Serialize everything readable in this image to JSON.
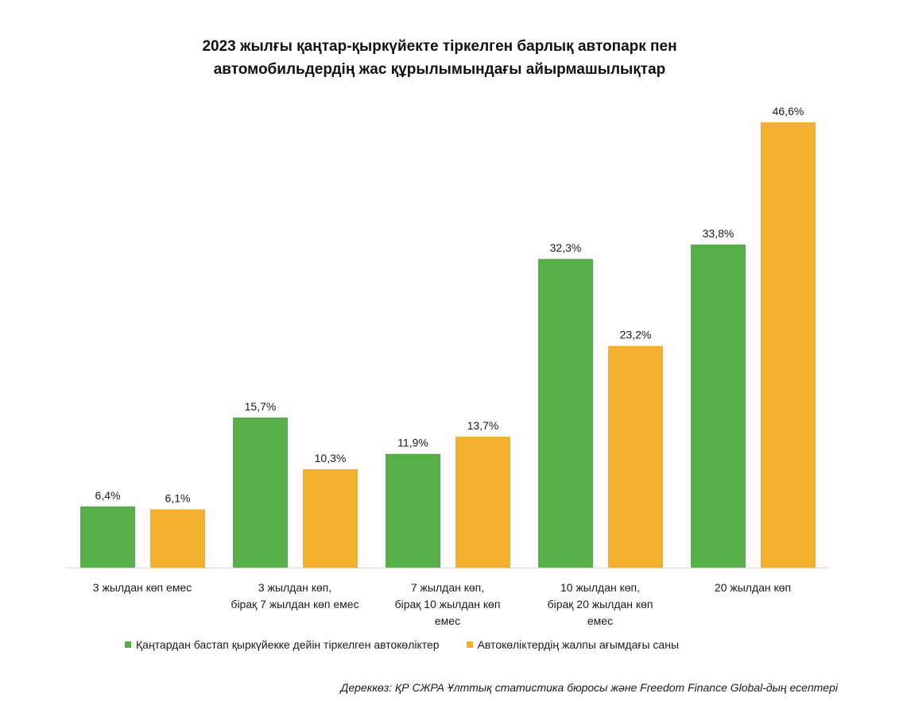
{
  "colors": {
    "series_1": "#56AE46",
    "series_2": "#F5AE2D",
    "axis": "#d9d9d9"
  },
  "chart_data": {
    "type": "bar",
    "title_lines": [
      "2023 жылғы қаңтар-қыркүйекте тіркелген барлық автопарк пен",
      "автомобильдердің жас құрылымындағы айырмашылықтар"
    ],
    "categories": [
      [
        "3 жылдан көп емес"
      ],
      [
        "3 жылдан көп,",
        "бірақ 7 жылдан көп емес"
      ],
      [
        "7 жылдан көп,",
        "бірақ 10 жылдан көп",
        "емес"
      ],
      [
        "10 жылдан көп,",
        "бірақ 20 жылдан көп",
        "емес"
      ],
      [
        "20 жылдан көп"
      ]
    ],
    "series": [
      {
        "name": "Қаңтардан бастап қыркүйекке дейін тіркелген автокөліктер",
        "values": [
          6.4,
          15.7,
          11.9,
          32.3,
          33.8
        ],
        "labels": [
          "6,4%",
          "15,7%",
          "11,9%",
          "32,3%",
          "33,8%"
        ]
      },
      {
        "name": "Автокөліктердің жалпы ағымдағы саны",
        "values": [
          6.1,
          10.3,
          13.7,
          23.2,
          46.6
        ],
        "labels": [
          "6,1%",
          "10,3%",
          "13,7%",
          "23,2%",
          "46,6%"
        ]
      }
    ],
    "unit": "%",
    "ylim": [
      0,
      46.6
    ],
    "grid": false,
    "legend_position": "bottom",
    "source": "Дереккөз: ҚР СЖРА Ұлттық статистика бюросы және Freedom Finance Global-дың есептері"
  }
}
